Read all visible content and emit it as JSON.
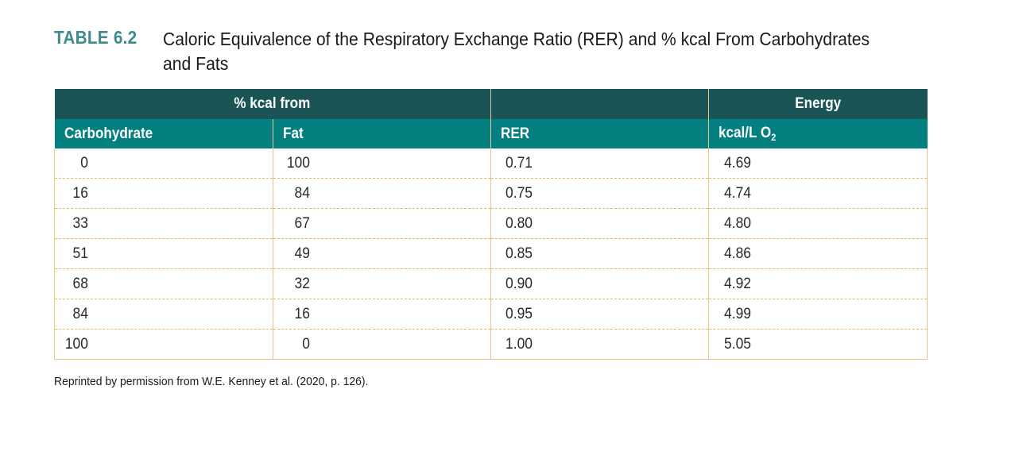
{
  "caption": {
    "label": "TABLE 6.2",
    "title": "Caloric Equivalence of the Respiratory Exchange Ratio (RER) and % kcal From Carbohydrates and Fats"
  },
  "table": {
    "group_headers": {
      "kcal_from": "% kcal from",
      "rer_group": "",
      "energy": "Energy"
    },
    "columns": {
      "carbohydrate": "Carbohydrate",
      "fat": "Fat",
      "rer": "RER",
      "energy_unit": "kcal/L O",
      "energy_unit_sub": "2"
    },
    "rows": [
      {
        "carbohydrate": "0",
        "fat": "100",
        "rer": "0.71",
        "energy": "4.69"
      },
      {
        "carbohydrate": "16",
        "fat": "84",
        "rer": "0.75",
        "energy": "4.74"
      },
      {
        "carbohydrate": "33",
        "fat": "67",
        "rer": "0.80",
        "energy": "4.80"
      },
      {
        "carbohydrate": "51",
        "fat": "49",
        "rer": "0.85",
        "energy": "4.86"
      },
      {
        "carbohydrate": "68",
        "fat": "32",
        "rer": "0.90",
        "energy": "4.92"
      },
      {
        "carbohydrate": "84",
        "fat": "16",
        "rer": "0.95",
        "energy": "4.99"
      },
      {
        "carbohydrate": "100",
        "fat": "0",
        "rer": "1.00",
        "energy": "5.05"
      }
    ]
  },
  "footnote": "Reprinted by permission from W.E. Kenney et al. (2020, p. 126).",
  "colors": {
    "label": "#3e8a8c",
    "header_dark": "#1a5456",
    "header_teal": "#037f80",
    "border": "#e8c886"
  }
}
